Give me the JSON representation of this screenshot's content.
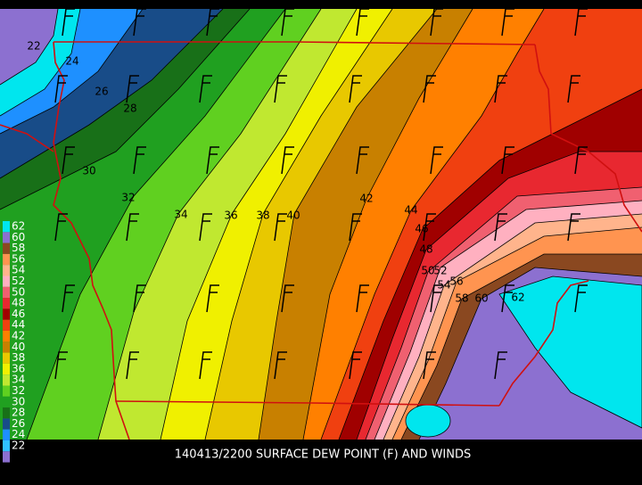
{
  "title": "140413/2200 SURFACE DEW POINT (F) AND WINDS",
  "legend": {
    "entries": [
      {
        "label": "62",
        "color": "#00e6ee"
      },
      {
        "label": "60",
        "color": "#8c70d0"
      },
      {
        "label": "58",
        "color": "#8a4820"
      },
      {
        "label": "56",
        "color": "#ff9450"
      },
      {
        "label": "54",
        "color": "#ffb48c"
      },
      {
        "label": "52",
        "color": "#ffb0c0"
      },
      {
        "label": "50",
        "color": "#f06070"
      },
      {
        "label": "48",
        "color": "#e82830"
      },
      {
        "label": "46",
        "color": "#a00000"
      },
      {
        "label": "44",
        "color": "#f04010"
      },
      {
        "label": "42",
        "color": "#ff8000"
      },
      {
        "label": "40",
        "color": "#c88000"
      },
      {
        "label": "38",
        "color": "#e8c800"
      },
      {
        "label": "36",
        "color": "#f0f000"
      },
      {
        "label": "34",
        "color": "#c0e830"
      },
      {
        "label": "32",
        "color": "#60d020"
      },
      {
        "label": "30",
        "color": "#20a020"
      },
      {
        "label": "28",
        "color": "#187018"
      },
      {
        "label": "26",
        "color": "#184c88"
      },
      {
        "label": "24",
        "color": "#1e90ff"
      },
      {
        "label": "22",
        "color": "#30c0ff"
      }
    ],
    "bottom_color": "#8c70d0",
    "first_band_color": "#00e6ee"
  },
  "contour_labels": [
    "22",
    "24",
    "26",
    "28",
    "30",
    "32",
    "34",
    "36",
    "38",
    "40",
    "42",
    "44",
    "46",
    "48",
    "50",
    "52",
    "54",
    "56",
    "58",
    "60",
    "62"
  ]
}
